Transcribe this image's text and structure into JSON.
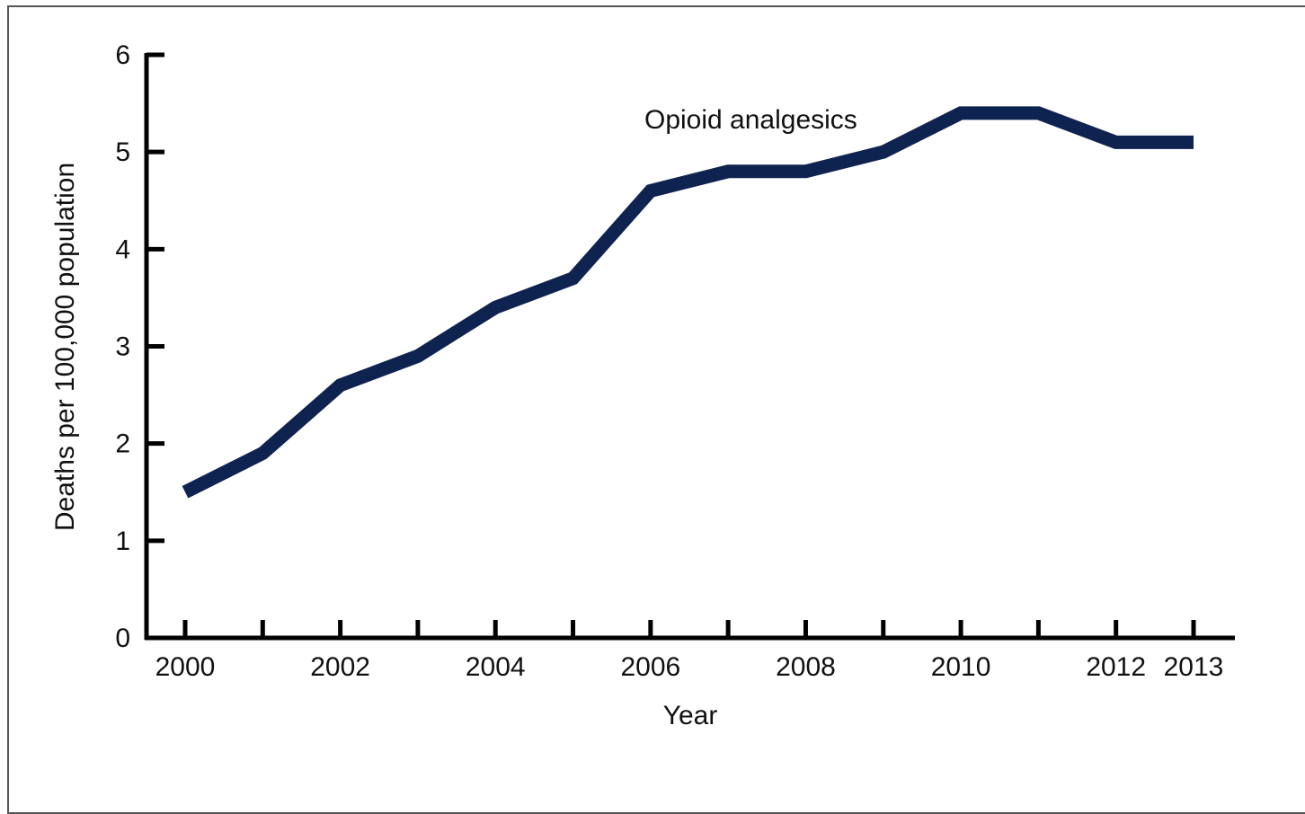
{
  "chart_data": {
    "type": "line",
    "title": "",
    "xlabel": "Year",
    "ylabel": "Deaths per 100,000 population",
    "xlim": [
      2000,
      2013
    ],
    "ylim": [
      0,
      6
    ],
    "x_tick_labels": [
      "2000",
      "2002",
      "2004",
      "2006",
      "2008",
      "2010",
      "2012",
      "2013"
    ],
    "y_tick_labels": [
      "0",
      "1",
      "2",
      "3",
      "4",
      "5",
      "6"
    ],
    "grid": false,
    "legend": "none",
    "x": [
      2000,
      2001,
      2002,
      2003,
      2004,
      2005,
      2006,
      2007,
      2008,
      2009,
      2010,
      2011,
      2012,
      2013
    ],
    "series": [
      {
        "name": "Opioid analgesics",
        "color": "#0f2350",
        "values": [
          1.5,
          1.9,
          2.6,
          2.9,
          3.4,
          3.7,
          4.6,
          4.8,
          4.8,
          5.0,
          5.4,
          5.4,
          5.1,
          5.1
        ]
      }
    ]
  }
}
